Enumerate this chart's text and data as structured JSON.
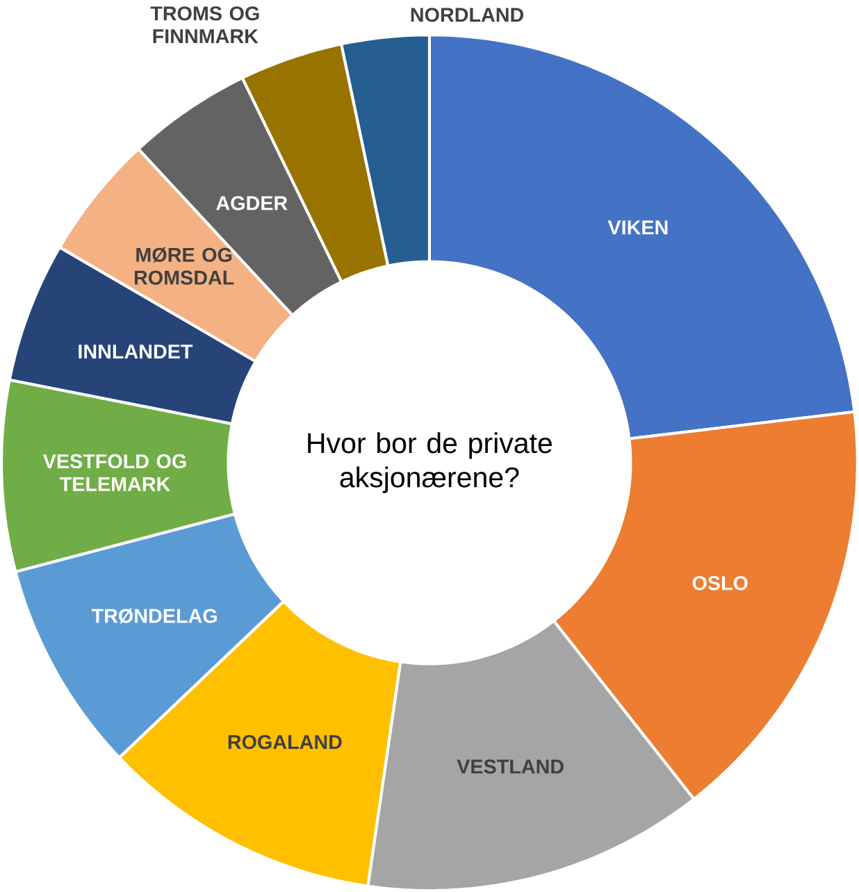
{
  "chart_data": {
    "type": "donut",
    "title": "Hvor bor de private aksjonærene?",
    "categories": [
      "VIKEN",
      "OSLO",
      "VESTLAND",
      "ROGALAND",
      "TRØNDELAG",
      "VESTFOLD OG TELEMARK",
      "INNLANDET",
      "MØRE OG ROMSDAL",
      "AGDER",
      "TROMS OG FINNMARK",
      "NORDLAND"
    ],
    "values": [
      23.1,
      16.3,
      12.9,
      10.6,
      8.0,
      7.2,
      5.3,
      4.7,
      4.7,
      3.9,
      3.3
    ],
    "colors": [
      "#4472c4",
      "#ed7d31",
      "#a5a5a5",
      "#ffc000",
      "#5b9bd5",
      "#70ad47",
      "#264478",
      "#f4b183",
      "#636363",
      "#997300",
      "#255e91"
    ]
  }
}
